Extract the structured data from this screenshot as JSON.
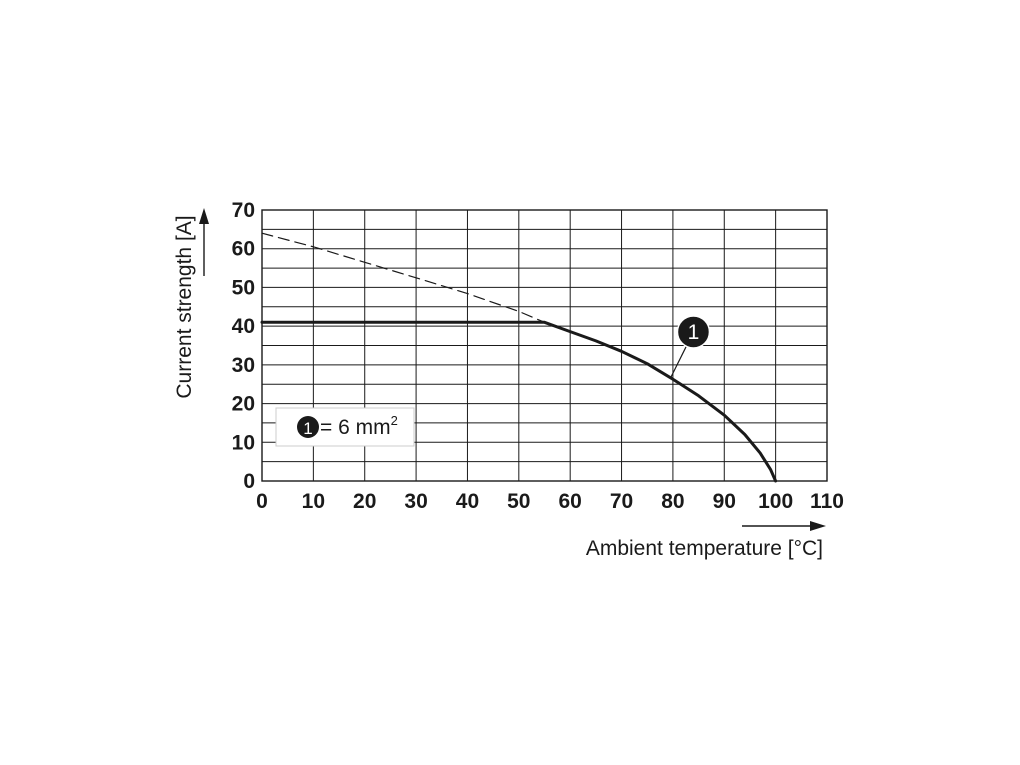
{
  "chart_data": {
    "type": "line",
    "title": "",
    "xlabel": "Ambient temperature [°C]",
    "ylabel": "Current strength [A]",
    "xlim": [
      0,
      110
    ],
    "ylim": [
      0,
      70
    ],
    "x_ticks": [
      0,
      10,
      20,
      30,
      40,
      50,
      60,
      70,
      80,
      90,
      100,
      110
    ],
    "y_ticks": [
      0,
      10,
      20,
      30,
      40,
      50,
      60,
      70
    ],
    "grid": true,
    "minor_y_step": 5,
    "series": [
      {
        "style": "solid",
        "points": [
          [
            0,
            41
          ],
          [
            55,
            41
          ],
          [
            60,
            38.6
          ],
          [
            65,
            36.2
          ],
          [
            70,
            33.5
          ],
          [
            75,
            30.3
          ],
          [
            80,
            26.3
          ],
          [
            85,
            22.0
          ],
          [
            90,
            17.0
          ],
          [
            94,
            12.0
          ],
          [
            97,
            7.2
          ],
          [
            99,
            3.0
          ],
          [
            100,
            0
          ]
        ]
      },
      {
        "style": "dashed",
        "points": [
          [
            0,
            64
          ],
          [
            10,
            60.5
          ],
          [
            20,
            56.5
          ],
          [
            30,
            52.5
          ],
          [
            40,
            48.4
          ],
          [
            50,
            43.8
          ],
          [
            55,
            41
          ]
        ]
      }
    ],
    "annotations": [
      {
        "marker": "1",
        "x": 84,
        "y": 38.5,
        "points_to": [
          79.5,
          26.5
        ]
      }
    ],
    "legend": {
      "marker": "1",
      "text": "= 6 mm",
      "superscript": "2",
      "placement": "bottom-left"
    }
  },
  "colors": {
    "line": "#1a1a1a",
    "grid": "#1a1a1a",
    "background": "#ffffff",
    "legend_box": "#cccccc"
  }
}
